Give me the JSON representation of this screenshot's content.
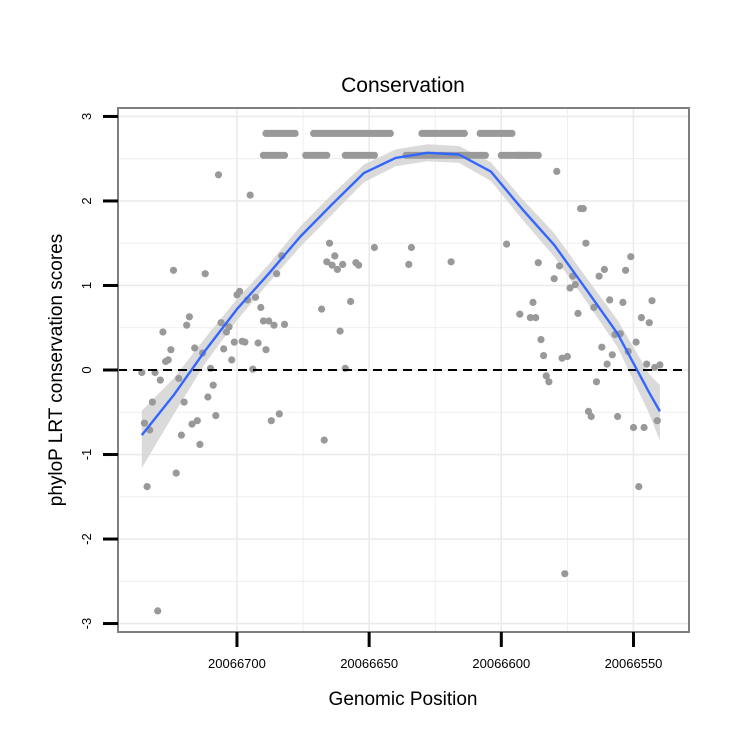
{
  "chart_data": {
    "type": "scatter",
    "title": "Conservation",
    "xlabel": "Genomic Position",
    "ylabel": "phyloP LRT conservation scores",
    "x_reversed": true,
    "xlim": [
      20066745,
      20066529
    ],
    "ylim": [
      -3.1,
      3.1
    ],
    "x_ticks": [
      20066700,
      20066650,
      20066600,
      20066550
    ],
    "x_tick_labels": [
      "20066700",
      "20066650",
      "20066600",
      "20066550"
    ],
    "y_ticks": [
      -3,
      -2,
      -1,
      0,
      1,
      2,
      3
    ],
    "y_tick_labels": [
      "-3",
      "-2",
      "-1",
      "0",
      "1",
      "2",
      "3"
    ],
    "grid": true,
    "reference_line": {
      "y": 0,
      "style": "dashed",
      "color": "#000000"
    },
    "colors": {
      "points": "#999999",
      "smooth": "#3366ff",
      "band": "#d3d3d3",
      "grid": "#ebebeb",
      "frame": "#7f7f7f"
    },
    "points": [
      [
        20066736,
        -0.03
      ],
      [
        20066735,
        -0.63
      ],
      [
        20066734,
        -1.38
      ],
      [
        20066733,
        -0.71
      ],
      [
        20066732,
        -0.38
      ],
      [
        20066731,
        -0.03
      ],
      [
        20066730,
        -2.85
      ],
      [
        20066729,
        -0.12
      ],
      [
        20066728,
        0.45
      ],
      [
        20066727,
        0.1
      ],
      [
        20066726,
        0.12
      ],
      [
        20066725,
        0.24
      ],
      [
        20066724,
        1.18
      ],
      [
        20066723,
        -1.22
      ],
      [
        20066722,
        -0.1
      ],
      [
        20066721,
        -0.77
      ],
      [
        20066720,
        -0.38
      ],
      [
        20066719,
        0.53
      ],
      [
        20066718,
        0.63
      ],
      [
        20066717,
        -0.64
      ],
      [
        20066716,
        0.26
      ],
      [
        20066715,
        -0.6
      ],
      [
        20066714,
        -0.88
      ],
      [
        20066713,
        0.2
      ],
      [
        20066712,
        1.14
      ],
      [
        20066711,
        -0.32
      ],
      [
        20066710,
        0.02
      ],
      [
        20066709,
        -0.18
      ],
      [
        20066708,
        -0.54
      ],
      [
        20066707,
        2.31
      ],
      [
        20066706,
        0.56
      ],
      [
        20066705,
        0.25
      ],
      [
        20066704,
        0.45
      ],
      [
        20066703,
        0.51
      ],
      [
        20066702,
        0.12
      ],
      [
        20066701,
        0.33
      ],
      [
        20066700,
        0.89
      ],
      [
        20066699,
        0.93
      ],
      [
        20066698,
        0.34
      ],
      [
        20066697,
        0.33
      ],
      [
        20066696,
        0.83
      ],
      [
        20066695,
        2.07
      ],
      [
        20066694,
        0.01
      ],
      [
        20066693,
        0.86
      ],
      [
        20066692,
        0.32
      ],
      [
        20066691,
        0.74
      ],
      [
        20066690,
        0.58
      ],
      [
        20066689,
        0.24
      ],
      [
        20066688,
        0.58
      ],
      [
        20066687,
        -0.6
      ],
      [
        20066686,
        0.53
      ],
      [
        20066685,
        1.14
      ],
      [
        20066684,
        -0.52
      ],
      [
        20066683,
        1.35
      ],
      [
        20066682,
        0.54
      ],
      [
        20066668,
        0.72
      ],
      [
        20066667,
        -0.83
      ],
      [
        20066666,
        1.28
      ],
      [
        20066665,
        1.5
      ],
      [
        20066664,
        1.24
      ],
      [
        20066663,
        1.35
      ],
      [
        20066662,
        1.19
      ],
      [
        20066661,
        0.46
      ],
      [
        20066660,
        1.25
      ],
      [
        20066659,
        0.02
      ],
      [
        20066657,
        0.81
      ],
      [
        20066655,
        1.27
      ],
      [
        20066654,
        1.24
      ],
      [
        20066648,
        1.45
      ],
      [
        20066635,
        1.25
      ],
      [
        20066634,
        1.45
      ],
      [
        20066619,
        1.28
      ],
      [
        20066598,
        1.49
      ],
      [
        20066593,
        0.66
      ],
      [
        20066589,
        0.62
      ],
      [
        20066588,
        0.8
      ],
      [
        20066587,
        0.62
      ],
      [
        20066586,
        1.27
      ],
      [
        20066585,
        0.36
      ],
      [
        20066584,
        0.17
      ],
      [
        20066583,
        -0.07
      ],
      [
        20066582,
        -0.14
      ],
      [
        20066580,
        1.08
      ],
      [
        20066579,
        2.35
      ],
      [
        20066578,
        1.23
      ],
      [
        20066577,
        0.14
      ],
      [
        20066576,
        -2.41
      ],
      [
        20066575,
        0.16
      ],
      [
        20066574,
        0.97
      ],
      [
        20066573,
        1.11
      ],
      [
        20066572,
        1.01
      ],
      [
        20066571,
        0.67
      ],
      [
        20066570,
        1.91
      ],
      [
        20066569,
        1.91
      ],
      [
        20066568,
        1.5
      ],
      [
        20066567,
        -0.49
      ],
      [
        20066566,
        -0.55
      ],
      [
        20066565,
        0.74
      ],
      [
        20066564,
        -0.14
      ],
      [
        20066563,
        1.11
      ],
      [
        20066562,
        0.27
      ],
      [
        20066561,
        1.19
      ],
      [
        20066560,
        0.07
      ],
      [
        20066559,
        0.83
      ],
      [
        20066558,
        0.18
      ],
      [
        20066557,
        0.42
      ],
      [
        20066556,
        -0.55
      ],
      [
        20066555,
        0.43
      ],
      [
        20066554,
        0.8
      ],
      [
        20066553,
        1.18
      ],
      [
        20066552,
        0.22
      ],
      [
        20066551,
        1.34
      ],
      [
        20066550,
        -0.68
      ],
      [
        20066549,
        0.33
      ],
      [
        20066548,
        -1.38
      ],
      [
        20066547,
        0.62
      ],
      [
        20066546,
        -0.68
      ],
      [
        20066545,
        0.07
      ],
      [
        20066544,
        0.56
      ],
      [
        20066543,
        0.82
      ],
      [
        20066542,
        0.03
      ],
      [
        20066541,
        -0.6
      ],
      [
        20066540,
        0.06
      ]
    ],
    "point_runs": [
      {
        "y": 2.8,
        "x_from": 20066690,
        "x_to": 20066542,
        "x_step": 1,
        "segments": [
          [
            20066689,
            20066678
          ],
          [
            20066671,
            20066642
          ],
          [
            20066630,
            20066614
          ],
          [
            20066608,
            20066596
          ]
        ]
      },
      {
        "y": 2.54,
        "segments": [
          [
            20066690,
            20066682
          ],
          [
            20066674,
            20066666
          ],
          [
            20066659,
            20066648
          ],
          [
            20066636,
            20066606
          ],
          [
            20066600,
            20066591
          ],
          [
            20066594,
            20066586
          ]
        ]
      }
    ],
    "smooth": {
      "x": [
        20066736,
        20066724,
        20066712,
        20066700,
        20066688,
        20066676,
        20066664,
        20066652,
        20066640,
        20066628,
        20066616,
        20066604,
        20066592,
        20066580,
        20066568,
        20066556,
        20066544,
        20066540
      ],
      "y": [
        -0.77,
        -0.3,
        0.23,
        0.72,
        1.14,
        1.58,
        1.96,
        2.33,
        2.51,
        2.57,
        2.55,
        2.35,
        1.9,
        1.48,
        0.96,
        0.43,
        -0.27,
        -0.49
      ],
      "ci_upper": [
        -0.48,
        -0.1,
        0.38,
        0.84,
        1.25,
        1.7,
        2.08,
        2.43,
        2.61,
        2.67,
        2.65,
        2.46,
        2.02,
        1.62,
        1.1,
        0.59,
        -0.05,
        -0.18
      ],
      "ci_lower": [
        -1.16,
        -0.53,
        0.08,
        0.59,
        1.03,
        1.46,
        1.84,
        2.22,
        2.41,
        2.47,
        2.45,
        2.24,
        1.78,
        1.34,
        0.82,
        0.27,
        -0.52,
        -0.84
      ]
    }
  }
}
